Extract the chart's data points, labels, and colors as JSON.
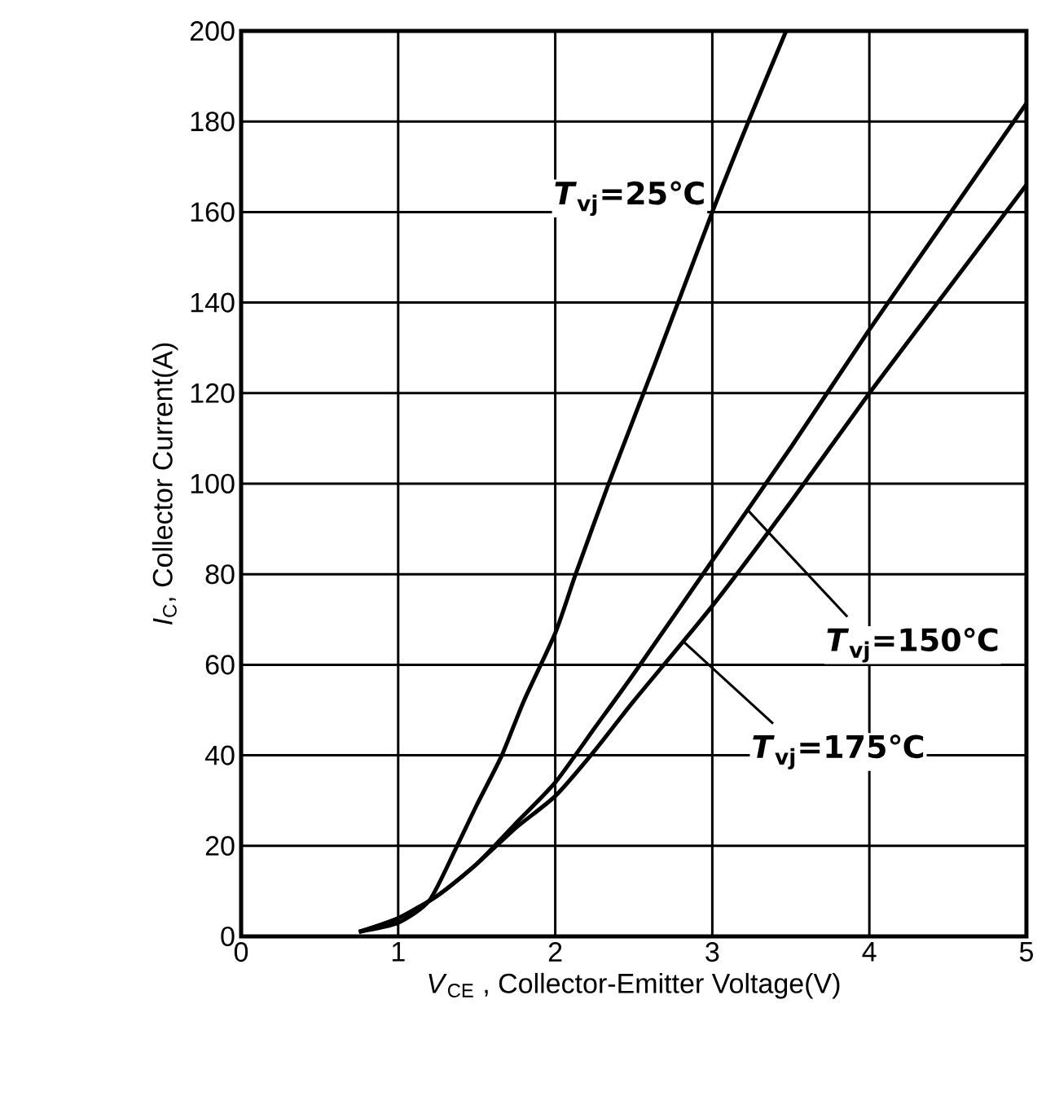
{
  "chart_data": {
    "type": "line",
    "xlabel": "*V*$_{CE}$ , Collector-Emitter Voltage(V)",
    "ylabel": "*I*$_{C}$, Collector Current(A)",
    "xlim": [
      0,
      5
    ],
    "ylim": [
      0,
      200
    ],
    "xticks": [
      0,
      1,
      2,
      3,
      4,
      5
    ],
    "yticks": [
      0,
      20,
      40,
      60,
      80,
      100,
      120,
      140,
      160,
      180,
      200
    ],
    "grid": true,
    "series": [
      {
        "color": "#000000",
        "x": [
          0.75,
          1.0,
          1.2,
          1.375,
          1.5,
          1.66,
          1.8,
          2.0,
          2.13,
          2.34,
          2.64,
          3.0,
          3.23,
          3.47
        ],
        "values": [
          1,
          3,
          8,
          20,
          29,
          40,
          52,
          67,
          80,
          100,
          127,
          160,
          180,
          200
        ]
      },
      {
        "color": "#000000",
        "x": [
          0.75,
          1.0,
          1.25,
          1.5,
          1.75,
          2.0,
          2.25,
          2.5,
          3.0,
          3.5,
          4.0,
          4.5,
          5.0
        ],
        "values": [
          1,
          4,
          9,
          16,
          25,
          34,
          46,
          58,
          83,
          108,
          134,
          159,
          184
        ]
      },
      {
        "color": "#000000",
        "x": [
          0.75,
          1.0,
          1.25,
          1.5,
          1.75,
          2.0,
          2.25,
          2.5,
          3.0,
          3.5,
          4.0,
          4.5,
          5.0
        ],
        "values": [
          1,
          4,
          9,
          16,
          24,
          31,
          41,
          52,
          73,
          96,
          120,
          143,
          166
        ]
      }
    ],
    "annotations": [
      {
        "text": "*T*$_{vj}$=25℃",
        "x": 3.0,
        "y": 163
      },
      {
        "text": "*T*$_{vj}$=150℃",
        "x": 3.23,
        "y": 94
      },
      {
        "text": "*T*$_{vj}$=175℃",
        "x": 2.82,
        "y": 65
      }
    ]
  }
}
